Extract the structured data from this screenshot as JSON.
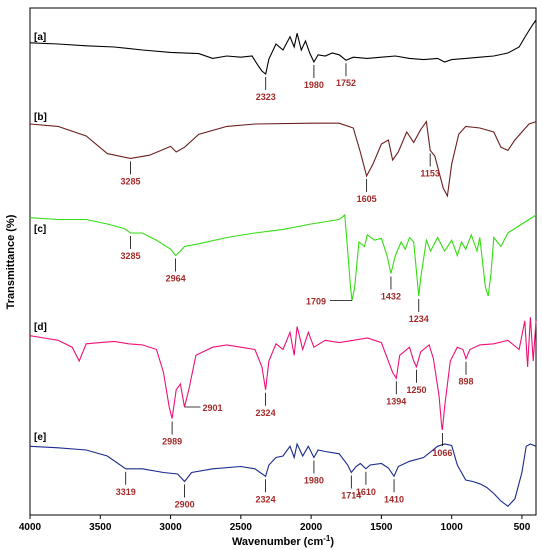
{
  "chart_data": {
    "type": "line",
    "xlabel_main": "Wavenumber (cm",
    "xlabel_sup": "-1",
    "xlabel_tail": ")",
    "ylabel": "Transmittance (%)",
    "xlim": [
      4000,
      400
    ],
    "xticks": [
      4000,
      3500,
      3000,
      2500,
      2000,
      1500,
      1000,
      500
    ],
    "grid": false,
    "series": [
      {
        "panel": "[a]",
        "color": "#000000",
        "band": [
          0,
          1
        ],
        "points": [
          [
            4000,
            0.62
          ],
          [
            3800,
            0.6
          ],
          [
            3600,
            0.57
          ],
          [
            3400,
            0.55
          ],
          [
            3200,
            0.5
          ],
          [
            3000,
            0.46
          ],
          [
            2800,
            0.44
          ],
          [
            2700,
            0.36
          ],
          [
            2600,
            0.4
          ],
          [
            2500,
            0.38
          ],
          [
            2420,
            0.4
          ],
          [
            2380,
            0.25
          ],
          [
            2350,
            0.15
          ],
          [
            2323,
            0.1
          ],
          [
            2300,
            0.35
          ],
          [
            2250,
            0.6
          ],
          [
            2200,
            0.5
          ],
          [
            2150,
            0.72
          ],
          [
            2120,
            0.55
          ],
          [
            2100,
            0.78
          ],
          [
            2070,
            0.5
          ],
          [
            2040,
            0.65
          ],
          [
            2010,
            0.45
          ],
          [
            1980,
            0.3
          ],
          [
            1950,
            0.42
          ],
          [
            1900,
            0.4
          ],
          [
            1850,
            0.45
          ],
          [
            1800,
            0.42
          ],
          [
            1752,
            0.33
          ],
          [
            1700,
            0.38
          ],
          [
            1600,
            0.36
          ],
          [
            1500,
            0.38
          ],
          [
            1400,
            0.4
          ],
          [
            1300,
            0.36
          ],
          [
            1200,
            0.34
          ],
          [
            1100,
            0.36
          ],
          [
            1050,
            0.3
          ],
          [
            1000,
            0.34
          ],
          [
            900,
            0.36
          ],
          [
            800,
            0.38
          ],
          [
            700,
            0.4
          ],
          [
            600,
            0.45
          ],
          [
            520,
            0.55
          ],
          [
            470,
            0.75
          ],
          [
            430,
            0.9
          ],
          [
            400,
            1.0
          ]
        ]
      },
      {
        "panel": "[b]",
        "color": "#6b1f1f",
        "band": [
          0,
          1
        ],
        "points": [
          [
            4000,
            0.95
          ],
          [
            3800,
            0.92
          ],
          [
            3600,
            0.8
          ],
          [
            3450,
            0.58
          ],
          [
            3285,
            0.52
          ],
          [
            3150,
            0.56
          ],
          [
            3000,
            0.67
          ],
          [
            2960,
            0.6
          ],
          [
            2900,
            0.66
          ],
          [
            2800,
            0.82
          ],
          [
            2600,
            0.92
          ],
          [
            2400,
            0.95
          ],
          [
            2000,
            0.96
          ],
          [
            1800,
            0.96
          ],
          [
            1700,
            0.9
          ],
          [
            1650,
            0.6
          ],
          [
            1605,
            0.3
          ],
          [
            1560,
            0.45
          ],
          [
            1500,
            0.7
          ],
          [
            1450,
            0.75
          ],
          [
            1420,
            0.5
          ],
          [
            1380,
            0.6
          ],
          [
            1320,
            0.85
          ],
          [
            1270,
            0.72
          ],
          [
            1220,
            0.88
          ],
          [
            1180,
            0.98
          ],
          [
            1153,
            0.62
          ],
          [
            1120,
            0.55
          ],
          [
            1060,
            0.15
          ],
          [
            1030,
            0.05
          ],
          [
            1000,
            0.45
          ],
          [
            950,
            0.82
          ],
          [
            900,
            0.92
          ],
          [
            800,
            0.9
          ],
          [
            700,
            0.85
          ],
          [
            650,
            0.66
          ],
          [
            600,
            0.62
          ],
          [
            550,
            0.75
          ],
          [
            500,
            0.85
          ],
          [
            450,
            0.95
          ],
          [
            400,
            0.98
          ]
        ]
      },
      {
        "panel": "[c]",
        "color": "#33dd11",
        "band": [
          0,
          1
        ],
        "points": [
          [
            4000,
            0.97
          ],
          [
            3800,
            0.95
          ],
          [
            3600,
            0.95
          ],
          [
            3450,
            0.9
          ],
          [
            3330,
            0.85
          ],
          [
            3285,
            0.8
          ],
          [
            3200,
            0.8
          ],
          [
            3100,
            0.72
          ],
          [
            3000,
            0.62
          ],
          [
            2964,
            0.55
          ],
          [
            2930,
            0.6
          ],
          [
            2900,
            0.65
          ],
          [
            2800,
            0.68
          ],
          [
            2600,
            0.75
          ],
          [
            2400,
            0.8
          ],
          [
            2200,
            0.84
          ],
          [
            2000,
            0.9
          ],
          [
            1800,
            0.95
          ],
          [
            1760,
            1.0
          ],
          [
            1740,
            0.6
          ],
          [
            1720,
            0.2
          ],
          [
            1709,
            0.05
          ],
          [
            1690,
            0.2
          ],
          [
            1660,
            0.7
          ],
          [
            1620,
            0.65
          ],
          [
            1600,
            0.78
          ],
          [
            1550,
            0.72
          ],
          [
            1500,
            0.74
          ],
          [
            1460,
            0.55
          ],
          [
            1432,
            0.35
          ],
          [
            1400,
            0.55
          ],
          [
            1360,
            0.7
          ],
          [
            1330,
            0.62
          ],
          [
            1300,
            0.75
          ],
          [
            1270,
            0.7
          ],
          [
            1240,
            0.2
          ],
          [
            1234,
            0.1
          ],
          [
            1220,
            0.3
          ],
          [
            1180,
            0.72
          ],
          [
            1150,
            0.6
          ],
          [
            1100,
            0.75
          ],
          [
            1050,
            0.6
          ],
          [
            1000,
            0.72
          ],
          [
            960,
            0.55
          ],
          [
            930,
            0.7
          ],
          [
            900,
            0.62
          ],
          [
            860,
            0.78
          ],
          [
            820,
            0.6
          ],
          [
            800,
            0.75
          ],
          [
            760,
            0.2
          ],
          [
            740,
            0.1
          ],
          [
            720,
            0.35
          ],
          [
            700,
            0.75
          ],
          [
            650,
            0.65
          ],
          [
            600,
            0.8
          ],
          [
            550,
            0.85
          ],
          [
            500,
            0.9
          ],
          [
            450,
            0.95
          ],
          [
            400,
            1.0
          ]
        ]
      },
      {
        "panel": "[d]",
        "color": "#ee1177",
        "band": [
          0,
          1
        ],
        "points": [
          [
            4000,
            0.82
          ],
          [
            3900,
            0.8
          ],
          [
            3800,
            0.78
          ],
          [
            3700,
            0.72
          ],
          [
            3650,
            0.6
          ],
          [
            3600,
            0.75
          ],
          [
            3500,
            0.76
          ],
          [
            3400,
            0.77
          ],
          [
            3300,
            0.75
          ],
          [
            3200,
            0.74
          ],
          [
            3100,
            0.7
          ],
          [
            3050,
            0.5
          ],
          [
            3010,
            0.2
          ],
          [
            2989,
            0.1
          ],
          [
            2960,
            0.35
          ],
          [
            2930,
            0.4
          ],
          [
            2901,
            0.2
          ],
          [
            2870,
            0.35
          ],
          [
            2820,
            0.65
          ],
          [
            2700,
            0.72
          ],
          [
            2600,
            0.74
          ],
          [
            2500,
            0.72
          ],
          [
            2400,
            0.7
          ],
          [
            2350,
            0.55
          ],
          [
            2324,
            0.35
          ],
          [
            2300,
            0.6
          ],
          [
            2250,
            0.75
          ],
          [
            2200,
            0.7
          ],
          [
            2150,
            0.85
          ],
          [
            2120,
            0.65
          ],
          [
            2100,
            0.9
          ],
          [
            2060,
            0.7
          ],
          [
            2020,
            0.85
          ],
          [
            1980,
            0.72
          ],
          [
            1900,
            0.78
          ],
          [
            1800,
            0.76
          ],
          [
            1700,
            0.78
          ],
          [
            1600,
            0.8
          ],
          [
            1500,
            0.76
          ],
          [
            1420,
            0.5
          ],
          [
            1394,
            0.45
          ],
          [
            1370,
            0.65
          ],
          [
            1300,
            0.72
          ],
          [
            1270,
            0.6
          ],
          [
            1250,
            0.55
          ],
          [
            1220,
            0.68
          ],
          [
            1160,
            0.74
          ],
          [
            1130,
            0.62
          ],
          [
            1090,
            0.3
          ],
          [
            1070,
            0.02
          ],
          [
            1066,
            0.0
          ],
          [
            1050,
            0.2
          ],
          [
            1010,
            0.6
          ],
          [
            960,
            0.72
          ],
          [
            920,
            0.7
          ],
          [
            898,
            0.62
          ],
          [
            870,
            0.7
          ],
          [
            800,
            0.74
          ],
          [
            700,
            0.75
          ],
          [
            600,
            0.78
          ],
          [
            520,
            0.7
          ],
          [
            480,
            0.95
          ],
          [
            460,
            0.55
          ],
          [
            440,
            0.98
          ],
          [
            420,
            0.6
          ],
          [
            400,
            0.95
          ]
        ]
      },
      {
        "panel": "[e]",
        "color": "#1a2a8c",
        "band": [
          0,
          1
        ],
        "points": [
          [
            4000,
            0.85
          ],
          [
            3800,
            0.83
          ],
          [
            3600,
            0.8
          ],
          [
            3450,
            0.72
          ],
          [
            3319,
            0.55
          ],
          [
            3200,
            0.55
          ],
          [
            3050,
            0.5
          ],
          [
            2950,
            0.48
          ],
          [
            2900,
            0.38
          ],
          [
            2850,
            0.5
          ],
          [
            2700,
            0.55
          ],
          [
            2500,
            0.58
          ],
          [
            2400,
            0.55
          ],
          [
            2324,
            0.45
          ],
          [
            2300,
            0.6
          ],
          [
            2250,
            0.7
          ],
          [
            2200,
            0.72
          ],
          [
            2150,
            0.85
          ],
          [
            2120,
            0.7
          ],
          [
            2100,
            0.88
          ],
          [
            2060,
            0.72
          ],
          [
            2020,
            0.85
          ],
          [
            1980,
            0.7
          ],
          [
            1950,
            0.8
          ],
          [
            1900,
            0.78
          ],
          [
            1800,
            0.75
          ],
          [
            1740,
            0.6
          ],
          [
            1714,
            0.5
          ],
          [
            1680,
            0.58
          ],
          [
            1650,
            0.62
          ],
          [
            1610,
            0.55
          ],
          [
            1580,
            0.6
          ],
          [
            1500,
            0.62
          ],
          [
            1450,
            0.56
          ],
          [
            1410,
            0.45
          ],
          [
            1380,
            0.58
          ],
          [
            1300,
            0.65
          ],
          [
            1200,
            0.7
          ],
          [
            1100,
            0.85
          ],
          [
            1050,
            0.88
          ],
          [
            1000,
            0.86
          ],
          [
            960,
            0.6
          ],
          [
            900,
            0.4
          ],
          [
            850,
            0.38
          ],
          [
            800,
            0.35
          ],
          [
            750,
            0.3
          ],
          [
            700,
            0.22
          ],
          [
            650,
            0.12
          ],
          [
            600,
            0.05
          ],
          [
            550,
            0.15
          ],
          [
            500,
            0.5
          ],
          [
            470,
            0.85
          ],
          [
            440,
            0.88
          ],
          [
            400,
            0.85
          ]
        ]
      }
    ],
    "peak_labels": [
      {
        "text": "2323",
        "series": 0,
        "x": 2323,
        "side": "below"
      },
      {
        "text": "1980",
        "series": 0,
        "x": 1980,
        "side": "below"
      },
      {
        "text": "1752",
        "series": 0,
        "x": 1752,
        "side": "below"
      },
      {
        "text": "3285",
        "series": 1,
        "x": 3285,
        "side": "below"
      },
      {
        "text": "1605",
        "series": 1,
        "x": 1605,
        "side": "below"
      },
      {
        "text": "1153",
        "series": 1,
        "x": 1153,
        "side": "below"
      },
      {
        "text": "3285",
        "series": 2,
        "x": 3285,
        "side": "below"
      },
      {
        "text": "2964",
        "series": 2,
        "x": 2964,
        "side": "below"
      },
      {
        "text": "1709",
        "series": 2,
        "x": 1709,
        "side": "left"
      },
      {
        "text": "1432",
        "series": 2,
        "x": 1432,
        "side": "below"
      },
      {
        "text": "1234",
        "series": 2,
        "x": 1234,
        "side": "below"
      },
      {
        "text": "2989",
        "series": 3,
        "x": 2989,
        "side": "below"
      },
      {
        "text": "2901",
        "series": 3,
        "x": 2901,
        "side": "right"
      },
      {
        "text": "2324",
        "series": 3,
        "x": 2324,
        "side": "below"
      },
      {
        "text": "1394",
        "series": 3,
        "x": 1394,
        "side": "below"
      },
      {
        "text": "1250",
        "series": 3,
        "x": 1250,
        "side": "below"
      },
      {
        "text": "1066",
        "series": 3,
        "x": 1066,
        "side": "below"
      },
      {
        "text": "898",
        "series": 3,
        "x": 898,
        "side": "below"
      },
      {
        "text": "3319",
        "series": 4,
        "x": 3319,
        "side": "below"
      },
      {
        "text": "2900",
        "series": 4,
        "x": 2900,
        "side": "below"
      },
      {
        "text": "2324",
        "series": 4,
        "x": 2324,
        "side": "below"
      },
      {
        "text": "1980",
        "series": 4,
        "x": 1980,
        "side": "below"
      },
      {
        "text": "1714",
        "series": 4,
        "x": 1714,
        "side": "below"
      },
      {
        "text": "1610",
        "series": 4,
        "x": 1610,
        "side": "below"
      },
      {
        "text": "1410",
        "series": 4,
        "x": 1410,
        "side": "below"
      }
    ]
  }
}
